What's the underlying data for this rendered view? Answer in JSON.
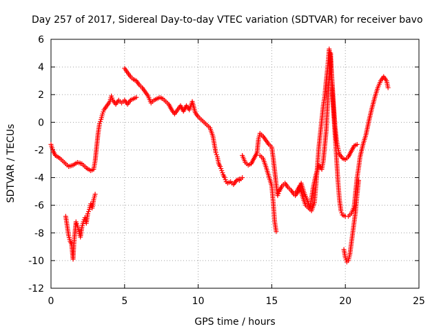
{
  "chart_data": {
    "type": "scatter",
    "title": "Day 257 of 2017, Sidereal Day-to-day VTEC variation (SDTVAR) for receiver bavo",
    "xlabel": "GPS time / hours",
    "ylabel": "SDTVAR / TECUs",
    "xlim": [
      0,
      25
    ],
    "ylim": [
      -12,
      6
    ],
    "xticks": [
      "0",
      "5",
      "10",
      "15",
      "20",
      "25"
    ],
    "yticks": [
      "-12",
      "-10",
      "-8",
      "-6",
      "-4",
      "-2",
      "0",
      "2",
      "4",
      "6"
    ],
    "grid": true,
    "marker": "+",
    "color": "#ff0000",
    "series": [
      {
        "name": "trace-main-1",
        "points": [
          [
            0.0,
            -1.6
          ],
          [
            0.15,
            -2.1
          ],
          [
            0.3,
            -2.4
          ],
          [
            0.6,
            -2.6
          ],
          [
            0.9,
            -2.9
          ],
          [
            1.2,
            -3.2
          ],
          [
            1.5,
            -3.1
          ],
          [
            1.8,
            -2.9
          ],
          [
            2.1,
            -3.0
          ],
          [
            2.4,
            -3.3
          ],
          [
            2.7,
            -3.5
          ],
          [
            2.9,
            -3.4
          ],
          [
            3.0,
            -2.8
          ],
          [
            3.1,
            -1.8
          ],
          [
            3.2,
            -0.8
          ],
          [
            3.3,
            -0.1
          ],
          [
            3.4,
            0.2
          ],
          [
            3.5,
            0.6
          ],
          [
            3.6,
            0.9
          ],
          [
            3.8,
            1.2
          ],
          [
            4.0,
            1.5
          ],
          [
            4.1,
            1.9
          ],
          [
            4.2,
            1.6
          ],
          [
            4.4,
            1.3
          ],
          [
            4.6,
            1.6
          ],
          [
            4.8,
            1.4
          ],
          [
            5.0,
            1.6
          ],
          [
            5.2,
            1.3
          ],
          [
            5.4,
            1.6
          ],
          [
            5.6,
            1.7
          ],
          [
            5.8,
            1.8
          ]
        ]
      },
      {
        "name": "trace-main-2",
        "points": [
          [
            5.0,
            3.9
          ],
          [
            5.2,
            3.6
          ],
          [
            5.4,
            3.3
          ],
          [
            5.6,
            3.1
          ],
          [
            5.8,
            3.0
          ],
          [
            6.0,
            2.7
          ],
          [
            6.2,
            2.5
          ],
          [
            6.4,
            2.2
          ],
          [
            6.6,
            1.9
          ],
          [
            6.8,
            1.4
          ],
          [
            7.0,
            1.6
          ],
          [
            7.2,
            1.7
          ],
          [
            7.4,
            1.8
          ],
          [
            7.6,
            1.7
          ],
          [
            7.8,
            1.5
          ],
          [
            8.0,
            1.3
          ],
          [
            8.2,
            0.9
          ],
          [
            8.4,
            0.6
          ],
          [
            8.6,
            0.9
          ],
          [
            8.8,
            1.2
          ],
          [
            9.0,
            0.8
          ],
          [
            9.2,
            1.2
          ],
          [
            9.4,
            0.9
          ],
          [
            9.6,
            1.5
          ],
          [
            9.8,
            0.7
          ],
          [
            10.0,
            0.4
          ],
          [
            10.2,
            0.2
          ],
          [
            10.4,
            0.0
          ],
          [
            10.6,
            -0.2
          ],
          [
            10.8,
            -0.4
          ],
          [
            11.0,
            -1.0
          ],
          [
            11.1,
            -1.6
          ],
          [
            11.2,
            -2.2
          ],
          [
            11.3,
            -2.5
          ],
          [
            11.4,
            -3.0
          ],
          [
            11.5,
            -3.2
          ],
          [
            11.6,
            -3.5
          ],
          [
            11.7,
            -3.8
          ],
          [
            11.8,
            -4.0
          ],
          [
            11.9,
            -4.3
          ],
          [
            12.0,
            -4.4
          ],
          [
            12.2,
            -4.3
          ],
          [
            12.4,
            -4.5
          ],
          [
            12.6,
            -4.2
          ],
          [
            12.8,
            -4.1
          ]
        ]
      },
      {
        "name": "trace-dip-early",
        "points": [
          [
            1.0,
            -6.8
          ],
          [
            1.1,
            -7.5
          ],
          [
            1.2,
            -8.2
          ],
          [
            1.3,
            -8.6
          ],
          [
            1.4,
            -8.8
          ],
          [
            1.5,
            -9.9
          ],
          [
            1.55,
            -8.9
          ],
          [
            1.6,
            -8.3
          ],
          [
            1.7,
            -7.2
          ],
          [
            1.8,
            -7.5
          ],
          [
            1.9,
            -7.9
          ],
          [
            2.0,
            -8.3
          ],
          [
            2.1,
            -7.6
          ],
          [
            2.2,
            -7.2
          ],
          [
            2.3,
            -6.9
          ],
          [
            2.4,
            -7.3
          ],
          [
            2.5,
            -6.6
          ],
          [
            2.6,
            -6.3
          ],
          [
            2.7,
            -5.9
          ],
          [
            2.8,
            -6.2
          ],
          [
            2.9,
            -5.6
          ],
          [
            3.0,
            -5.2
          ]
        ]
      },
      {
        "name": "trace-afternoon",
        "points": [
          [
            13.0,
            -2.4
          ],
          [
            13.2,
            -2.9
          ],
          [
            13.4,
            -3.1
          ],
          [
            13.6,
            -3.0
          ],
          [
            13.8,
            -2.6
          ],
          [
            14.0,
            -2.2
          ],
          [
            14.1,
            -1.2
          ],
          [
            14.2,
            -0.8
          ],
          [
            14.4,
            -1.0
          ],
          [
            14.6,
            -1.3
          ],
          [
            14.8,
            -1.6
          ],
          [
            15.0,
            -1.8
          ],
          [
            15.1,
            -2.6
          ],
          [
            15.2,
            -3.5
          ],
          [
            15.3,
            -4.5
          ],
          [
            15.4,
            -5.3
          ],
          [
            15.5,
            -5.0
          ],
          [
            15.7,
            -4.6
          ],
          [
            15.9,
            -4.4
          ],
          [
            16.1,
            -4.7
          ],
          [
            16.3,
            -4.9
          ],
          [
            16.5,
            -5.2
          ],
          [
            16.7,
            -5.0
          ],
          [
            16.9,
            -4.6
          ],
          [
            17.1,
            -5.4
          ],
          [
            17.3,
            -6.0
          ],
          [
            17.5,
            -6.2
          ],
          [
            17.7,
            -6.4
          ],
          [
            17.9,
            -5.8
          ],
          [
            18.0,
            -4.6
          ],
          [
            18.1,
            -3.2
          ],
          [
            18.2,
            -1.8
          ],
          [
            18.3,
            -0.8
          ],
          [
            18.4,
            0.2
          ],
          [
            18.5,
            1.2
          ],
          [
            18.6,
            1.9
          ],
          [
            18.7,
            3.0
          ],
          [
            18.8,
            4.0
          ],
          [
            18.9,
            5.3
          ],
          [
            19.0,
            4.5
          ],
          [
            19.1,
            3.0
          ],
          [
            19.2,
            1.2
          ],
          [
            19.3,
            -0.3
          ],
          [
            19.4,
            -1.3
          ],
          [
            19.5,
            -1.9
          ],
          [
            19.6,
            -2.3
          ],
          [
            19.8,
            -2.6
          ],
          [
            20.0,
            -2.7
          ],
          [
            20.2,
            -2.5
          ],
          [
            20.4,
            -2.1
          ],
          [
            20.6,
            -1.7
          ],
          [
            20.8,
            -1.6
          ]
        ]
      },
      {
        "name": "trace-late-2",
        "points": [
          [
            12.8,
            -4.2
          ],
          [
            13.0,
            -4.0
          ]
        ]
      },
      {
        "name": "trace-branch-low",
        "points": [
          [
            14.2,
            -2.4
          ],
          [
            14.4,
            -2.6
          ],
          [
            14.6,
            -3.2
          ],
          [
            14.8,
            -3.9
          ],
          [
            15.0,
            -4.6
          ],
          [
            15.1,
            -5.8
          ],
          [
            15.2,
            -7.2
          ],
          [
            15.3,
            -7.9
          ]
        ]
      },
      {
        "name": "trace-branch-mid",
        "points": [
          [
            16.6,
            -5.3
          ],
          [
            16.8,
            -5.0
          ],
          [
            17.0,
            -4.4
          ],
          [
            17.2,
            -5.1
          ],
          [
            17.4,
            -5.6
          ],
          [
            17.6,
            -6.2
          ],
          [
            17.8,
            -4.8
          ],
          [
            18.0,
            -3.8
          ],
          [
            18.2,
            -3.1
          ],
          [
            18.4,
            -3.4
          ],
          [
            18.5,
            -2.8
          ],
          [
            18.6,
            -1.7
          ],
          [
            18.7,
            -0.6
          ],
          [
            18.8,
            1.4
          ],
          [
            18.9,
            3.2
          ],
          [
            19.0,
            5.0
          ],
          [
            19.05,
            3.6
          ],
          [
            19.1,
            2.4
          ],
          [
            19.2,
            0.8
          ],
          [
            19.3,
            -0.9
          ],
          [
            19.4,
            -2.6
          ],
          [
            19.5,
            -4.3
          ],
          [
            19.6,
            -5.6
          ],
          [
            19.7,
            -6.4
          ],
          [
            19.8,
            -6.7
          ],
          [
            20.0,
            -6.8
          ],
          [
            20.2,
            -6.8
          ],
          [
            20.4,
            -6.6
          ],
          [
            20.6,
            -6.1
          ],
          [
            20.7,
            -5.0
          ],
          [
            20.8,
            -4.0
          ],
          [
            20.9,
            -3.3
          ],
          [
            21.0,
            -2.5
          ],
          [
            21.2,
            -1.6
          ],
          [
            21.4,
            -0.9
          ],
          [
            21.6,
            0.1
          ],
          [
            21.8,
            1.0
          ],
          [
            22.0,
            1.8
          ],
          [
            22.2,
            2.5
          ],
          [
            22.4,
            3.0
          ],
          [
            22.6,
            3.3
          ],
          [
            22.8,
            3.0
          ],
          [
            22.9,
            2.5
          ]
        ]
      },
      {
        "name": "trace-dip-late",
        "points": [
          [
            19.9,
            -9.2
          ],
          [
            20.0,
            -9.8
          ],
          [
            20.1,
            -10.1
          ],
          [
            20.2,
            -10.0
          ],
          [
            20.3,
            -9.6
          ],
          [
            20.4,
            -8.8
          ],
          [
            20.5,
            -8.0
          ],
          [
            20.6,
            -7.2
          ],
          [
            20.7,
            -6.4
          ],
          [
            20.8,
            -5.2
          ],
          [
            20.9,
            -4.2
          ]
        ]
      }
    ]
  }
}
